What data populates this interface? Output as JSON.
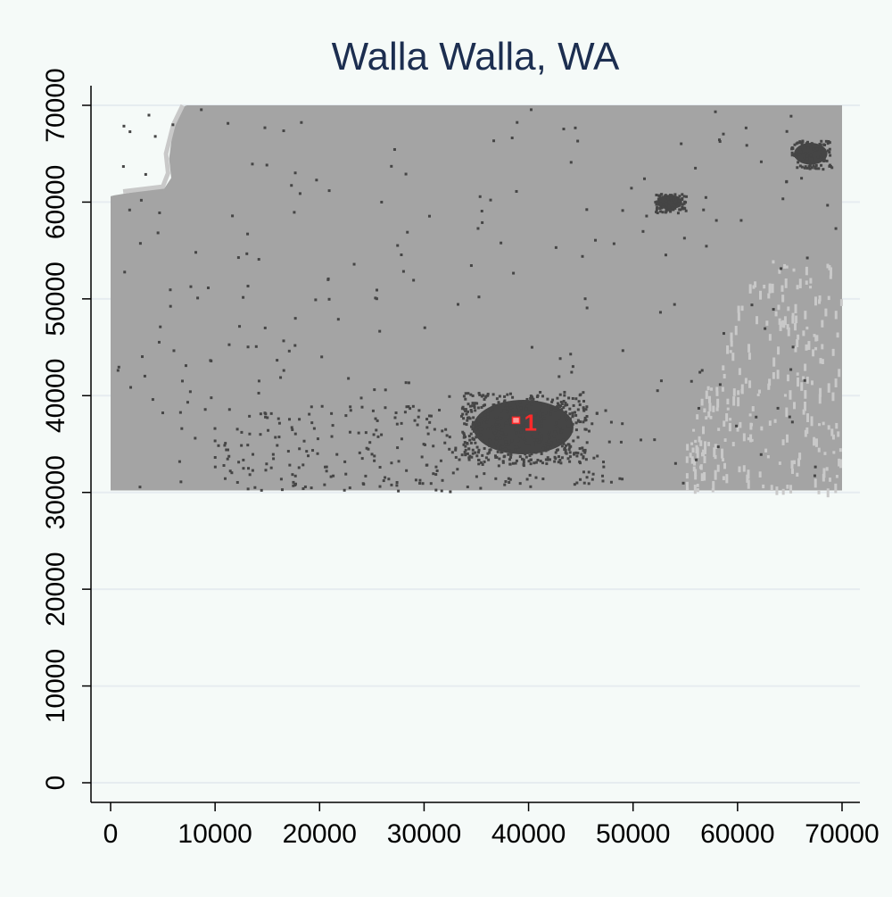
{
  "chart_data": {
    "type": "heatmap",
    "title": "Walla Walla, WA",
    "xlabel": "",
    "ylabel": "",
    "xlim": [
      0,
      70000
    ],
    "ylim": [
      0,
      70000
    ],
    "x_ticks": [
      0,
      10000,
      20000,
      30000,
      40000,
      50000,
      60000,
      70000
    ],
    "y_ticks": [
      0,
      10000,
      20000,
      30000,
      40000,
      50000,
      60000,
      70000
    ],
    "x_tick_labels": [
      "0",
      "10000",
      "20000",
      "30000",
      "40000",
      "50000",
      "60000",
      "70000"
    ],
    "y_tick_labels": [
      "0",
      "10000",
      "20000",
      "30000",
      "40000",
      "50000",
      "60000",
      "70000"
    ],
    "grid": true,
    "raster_extent": {
      "x": [
        0,
        70000
      ],
      "y": [
        30200,
        70000
      ]
    },
    "classes": [
      {
        "code": "other_land",
        "color": "#a4a4a4"
      },
      {
        "code": "developed",
        "color": "#454545"
      },
      {
        "code": "light_land",
        "color": "#c9c9c9"
      }
    ],
    "urban_cores": [
      {
        "x": [
          33500,
          45500
        ],
        "y": [
          33000,
          40500
        ]
      },
      {
        "x": [
          52000,
          55000
        ],
        "y": [
          59000,
          61000
        ]
      },
      {
        "x": [
          65000,
          69000
        ],
        "y": [
          63500,
          66500
        ]
      }
    ],
    "markers": [
      {
        "label": "1",
        "x": 38800,
        "y": 37500,
        "color": "#ff2a2a"
      }
    ],
    "colors": {
      "background": "#f5faf8",
      "title": "#1c2e50",
      "gridline": "#e6ecf0",
      "marker": "#ff2a2a"
    }
  }
}
